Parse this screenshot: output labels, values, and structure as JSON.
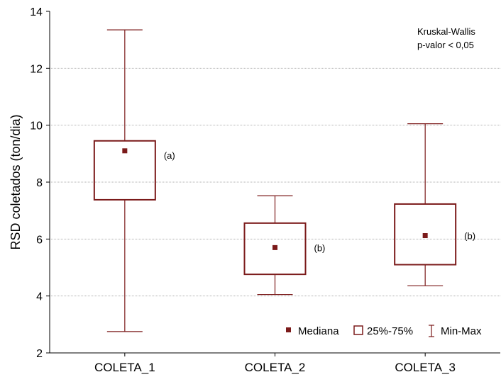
{
  "chart_data": {
    "type": "boxplot",
    "ylabel": "RSD coletados (ton/dia)",
    "xlabel": "",
    "ylim": [
      2,
      14
    ],
    "yticks": [
      "2",
      "4",
      "6",
      "8",
      "10",
      "12",
      "14"
    ],
    "grid": "horizontal",
    "legend_position": "bottom-right",
    "categories": [
      "COLETA_1",
      "COLETA_2",
      "COLETA_3"
    ],
    "boxes": [
      {
        "median": 9.1,
        "q1": 7.38,
        "q3": 9.45,
        "min": 2.75,
        "max": 13.35,
        "group": "(a)"
      },
      {
        "median": 5.7,
        "q1": 4.76,
        "q3": 6.56,
        "min": 4.05,
        "max": 7.52,
        "group": "(b)"
      },
      {
        "median": 6.12,
        "q1": 5.1,
        "q3": 7.23,
        "min": 4.36,
        "max": 10.05,
        "group": "(b)"
      }
    ],
    "annotation": [
      "Kruskal-Wallis",
      "p-valor < 0,05"
    ],
    "legend": [
      "Mediana",
      "25%-75%",
      "Min-Max"
    ],
    "colors": {
      "box": "#7b1a1a",
      "grid": "#b3b3b3",
      "axis": "#000000"
    }
  }
}
